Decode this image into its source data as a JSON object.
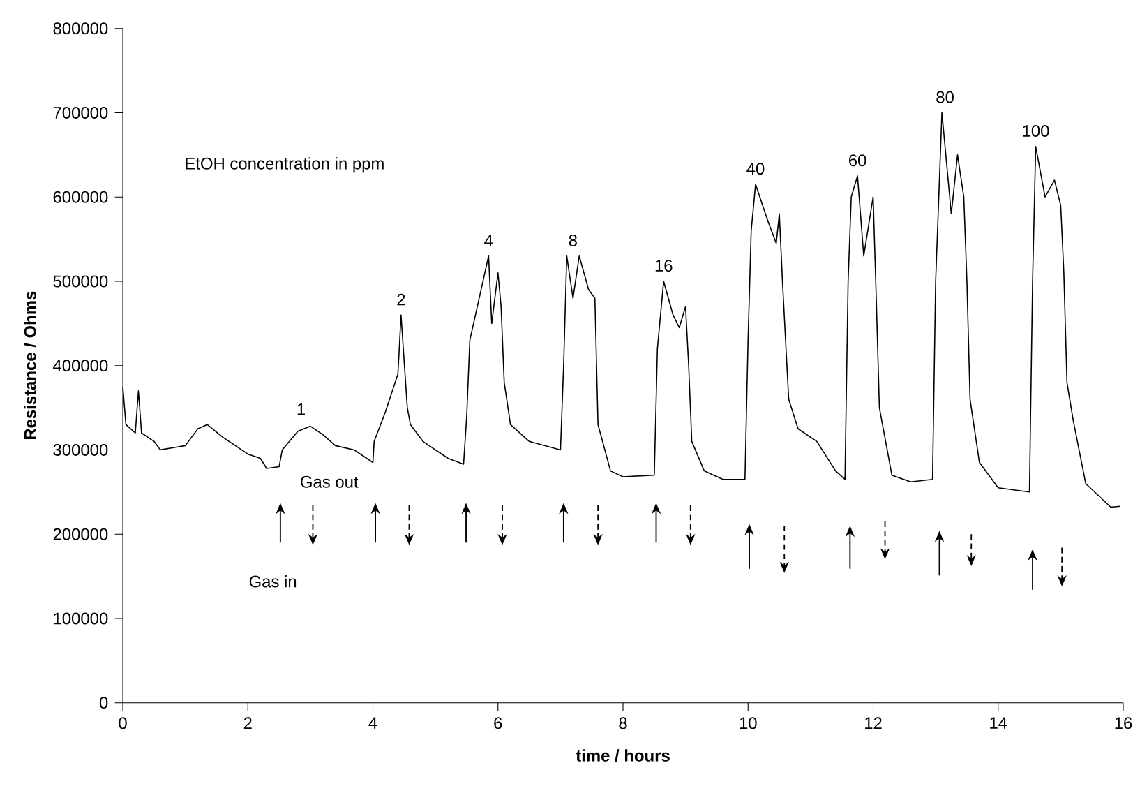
{
  "chart_data": {
    "type": "line",
    "xlabel": "time / hours",
    "ylabel": "Resistance / Ohms",
    "xlim": [
      0,
      16
    ],
    "ylim": [
      0,
      800000
    ],
    "xticks": [
      0,
      2,
      4,
      6,
      8,
      10,
      12,
      14,
      16
    ],
    "yticks": [
      0,
      100000,
      200000,
      300000,
      400000,
      500000,
      600000,
      700000,
      800000
    ],
    "grid": false,
    "marker": "none",
    "line_style": "solid",
    "series": [
      {
        "color": "#000000",
        "x": [
          0,
          0.05,
          0.2,
          0.25,
          0.3,
          0.5,
          0.6,
          1.0,
          1.2,
          1.35,
          1.6,
          2.0,
          2.2,
          2.3,
          2.5,
          2.55,
          2.8,
          3.0,
          3.2,
          3.4,
          3.7,
          4.0,
          4.02,
          4.2,
          4.4,
          4.45,
          4.55,
          4.6,
          4.8,
          5.2,
          5.45,
          5.5,
          5.55,
          5.7,
          5.85,
          5.9,
          6.0,
          6.05,
          6.1,
          6.2,
          6.5,
          7.0,
          7.05,
          7.1,
          7.2,
          7.3,
          7.45,
          7.55,
          7.6,
          7.8,
          8.0,
          8.5,
          8.55,
          8.65,
          8.8,
          8.9,
          9.0,
          9.05,
          9.1,
          9.3,
          9.6,
          9.95,
          10.0,
          10.05,
          10.12,
          10.3,
          10.45,
          10.5,
          10.55,
          10.65,
          10.8,
          11.1,
          11.4,
          11.55,
          11.6,
          11.65,
          11.75,
          11.85,
          12.0,
          12.05,
          12.1,
          12.3,
          12.6,
          12.95,
          13.0,
          13.1,
          13.25,
          13.35,
          13.45,
          13.5,
          13.55,
          13.7,
          14.0,
          14.5,
          14.55,
          14.6,
          14.75,
          14.9,
          15.0,
          15.05,
          15.1,
          15.2,
          15.4,
          15.8,
          15.95
        ],
        "values": [
          375000,
          330000,
          320000,
          370000,
          320000,
          310000,
          300000,
          305000,
          325000,
          330000,
          315000,
          295000,
          290000,
          278000,
          280000,
          300000,
          322000,
          328000,
          318000,
          305000,
          300000,
          285000,
          310000,
          345000,
          390000,
          460000,
          350000,
          330000,
          310000,
          290000,
          283000,
          340000,
          430000,
          480000,
          530000,
          450000,
          510000,
          470000,
          380000,
          330000,
          310000,
          300000,
          400000,
          530000,
          480000,
          530000,
          490000,
          480000,
          330000,
          275000,
          268000,
          270000,
          420000,
          500000,
          460000,
          445000,
          470000,
          400000,
          310000,
          275000,
          265000,
          265000,
          430000,
          560000,
          615000,
          575000,
          545000,
          580000,
          500000,
          360000,
          325000,
          310000,
          275000,
          265000,
          500000,
          600000,
          625000,
          530000,
          600000,
          480000,
          350000,
          270000,
          262000,
          265000,
          500000,
          700000,
          580000,
          650000,
          600000,
          500000,
          360000,
          285000,
          255000,
          250000,
          500000,
          660000,
          600000,
          620000,
          590000,
          510000,
          380000,
          335000,
          260000,
          232000,
          233000
        ]
      }
    ],
    "annotations": [
      "EtOH concentration in ppm",
      {
        "text": "1",
        "x": 2.85,
        "y": 330000
      },
      {
        "text": "2",
        "x": 4.45,
        "y": 460000
      },
      {
        "text": "4",
        "x": 5.85,
        "y": 530000
      },
      {
        "text": "8",
        "x": 7.2,
        "y": 530000
      },
      {
        "text": "16",
        "x": 8.65,
        "y": 500000
      },
      {
        "text": "40",
        "x": 10.12,
        "y": 615000
      },
      {
        "text": "60",
        "x": 11.75,
        "y": 625000
      },
      {
        "text": "80",
        "x": 13.15,
        "y": 700000
      },
      {
        "text": "100",
        "x": 14.6,
        "y": 660000
      },
      "Gas out",
      "Gas in"
    ]
  }
}
